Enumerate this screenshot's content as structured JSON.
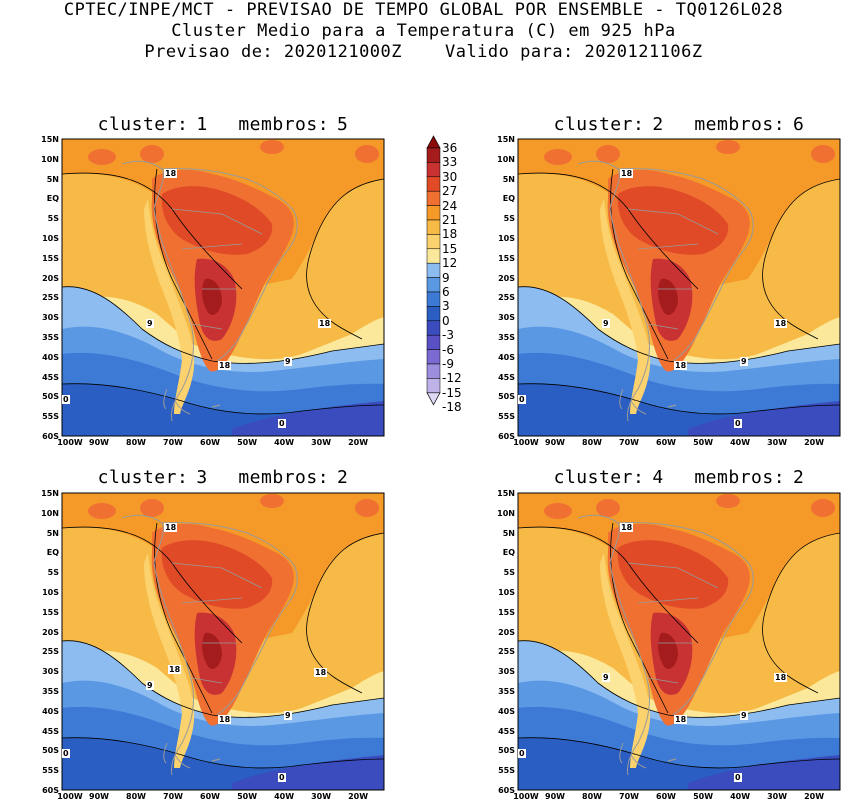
{
  "header": {
    "line1": "CPTEC/INPE/MCT - PREVISAO DE TEMPO GLOBAL POR ENSEMBLE - TQ0126L028",
    "line2": "Cluster Medio para a Temperatura (C) em 925 hPa",
    "line3_label_a": "Previsao de:",
    "line3_value_a": "2020121000Z",
    "line3_label_b": "Valido para:",
    "line3_value_b": "2020121106Z"
  },
  "panels": [
    {
      "cluster_label": "cluster:",
      "cluster": "1",
      "members_label": "membros:",
      "members": "5"
    },
    {
      "cluster_label": "cluster:",
      "cluster": "2",
      "members_label": "membros:",
      "members": "6"
    },
    {
      "cluster_label": "cluster:",
      "cluster": "3",
      "members_label": "membros:",
      "members": "2"
    },
    {
      "cluster_label": "cluster:",
      "cluster": "4",
      "members_label": "membros:",
      "members": "2"
    }
  ],
  "lat_labels": [
    "15N",
    "10N",
    "5N",
    "EQ",
    "5S",
    "10S",
    "15S",
    "20S",
    "25S",
    "30S",
    "35S",
    "40S",
    "45S",
    "50S",
    "55S",
    "60S"
  ],
  "lon_labels": [
    "100W",
    "90W",
    "80W",
    "70W",
    "60W",
    "50W",
    "40W",
    "30W",
    "20W"
  ],
  "colorbar": {
    "levels": [
      "36",
      "33",
      "30",
      "27",
      "24",
      "21",
      "18",
      "15",
      "12",
      "9",
      "6",
      "3",
      "0",
      "-3",
      "-6",
      "-9",
      "-12",
      "-15",
      "-18"
    ],
    "colors": [
      "#8c0a0a",
      "#a41c1c",
      "#c83232",
      "#e04a26",
      "#f07032",
      "#f59a28",
      "#f7ba46",
      "#fbd26e",
      "#fbe89a",
      "#8cbcf0",
      "#5a98e4",
      "#3c7ad6",
      "#2a5ec2",
      "#3a4cbe",
      "#5a50c6",
      "#7a6ad2",
      "#9e8ede",
      "#bfb2e8",
      "#e0d8f4"
    ]
  },
  "contour_labels": {
    "p1": [
      "18",
      "18",
      "18",
      "9",
      "9",
      "0",
      "0"
    ],
    "p2": [
      "18",
      "18",
      "18",
      "9",
      "9",
      "0",
      "0"
    ],
    "p3": [
      "18",
      "18",
      "18",
      "18",
      "9",
      "9",
      "0",
      "0"
    ],
    "p4": [
      "18",
      "18",
      "18",
      "9",
      "9",
      "0",
      "0"
    ]
  }
}
